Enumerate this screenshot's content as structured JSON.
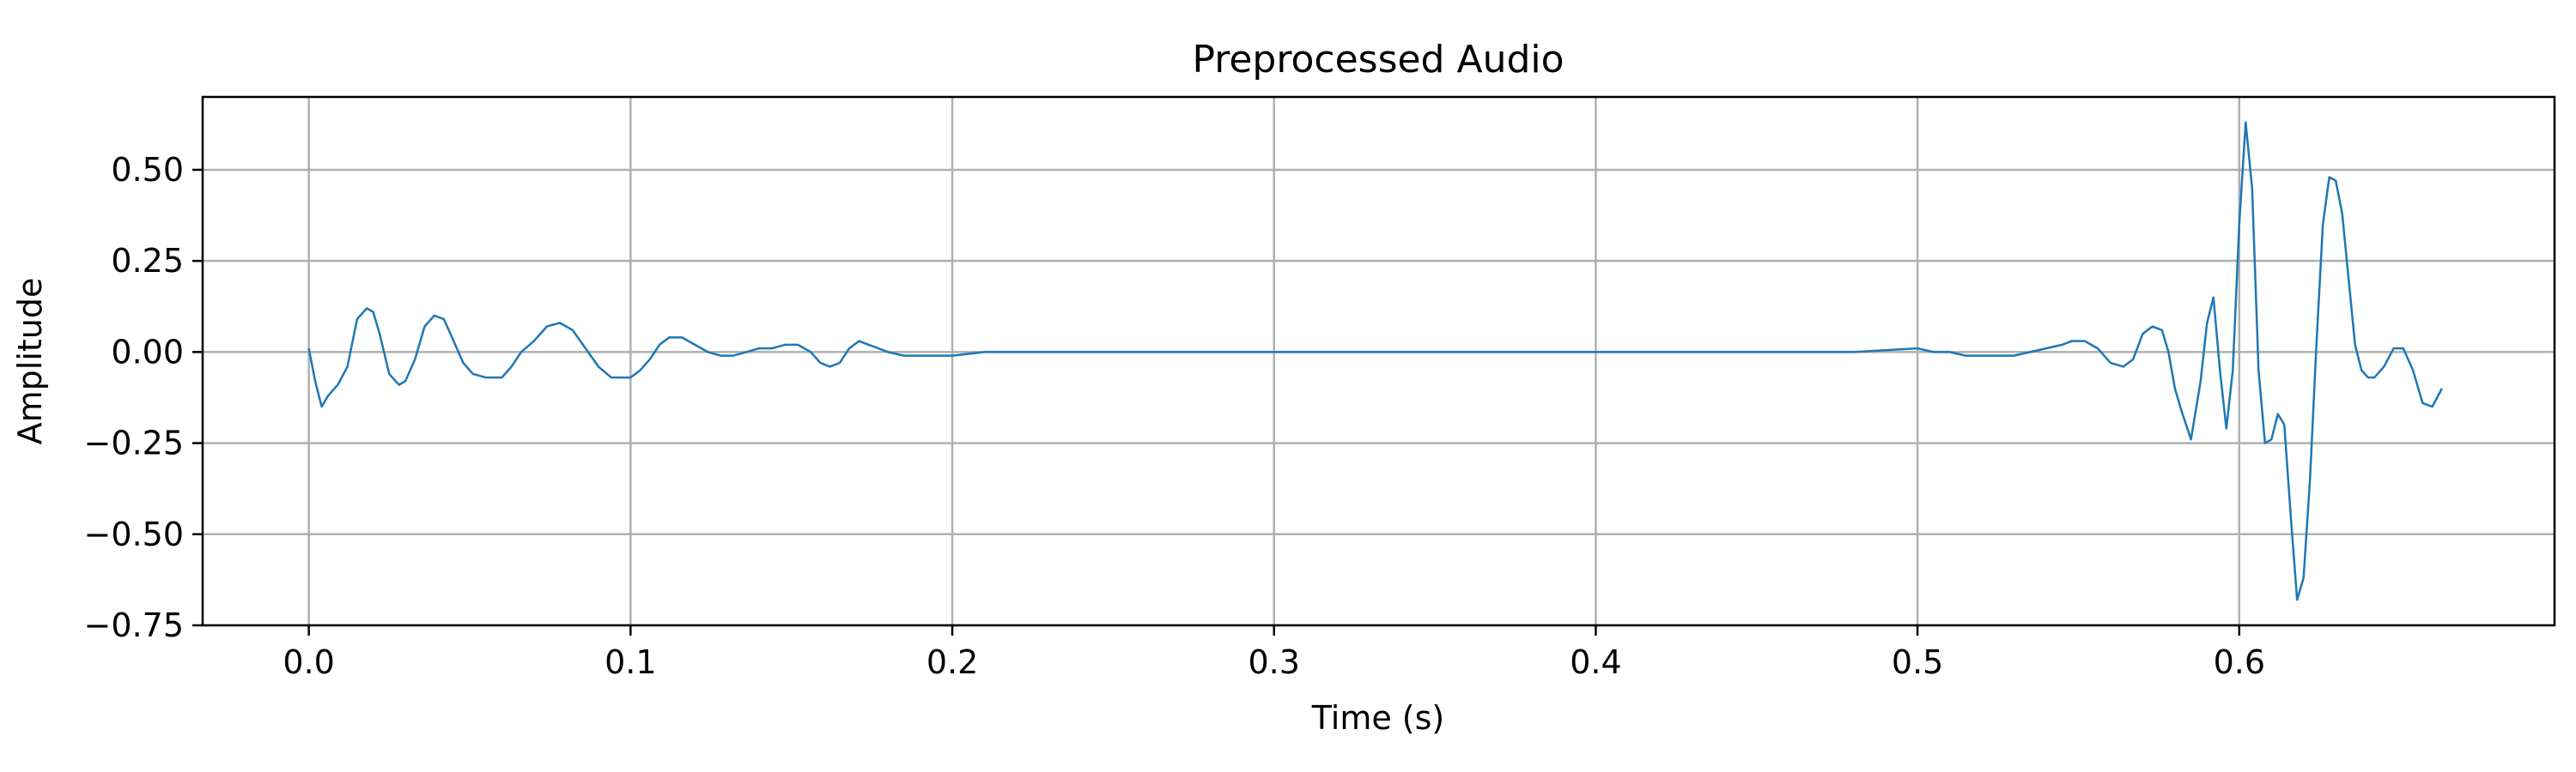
{
  "chart_data": {
    "type": "line",
    "title": "Preprocessed Audio",
    "xlabel": "Time (s)",
    "ylabel": "Amplitude",
    "xlim": [
      -0.033,
      0.698
    ],
    "ylim": [
      -0.75,
      0.7
    ],
    "x_ticks": [
      0.0,
      0.1,
      0.2,
      0.3,
      0.4,
      0.5,
      0.6
    ],
    "x_tick_labels": [
      "0.0",
      "0.1",
      "0.2",
      "0.3",
      "0.4",
      "0.5",
      "0.6"
    ],
    "y_ticks": [
      0.5,
      0.25,
      0.0,
      -0.25,
      -0.5,
      -0.75
    ],
    "y_tick_labels": [
      "0.50",
      "0.25",
      "0.00",
      "−0.25",
      "−0.50",
      "−0.75"
    ],
    "grid": true,
    "line_color": "#1f77b4",
    "grid_color": "#b0b0b0",
    "series": [
      {
        "x": [
          0.0,
          0.002,
          0.004,
          0.006,
          0.009,
          0.012,
          0.015,
          0.018,
          0.02,
          0.022,
          0.025,
          0.028,
          0.03,
          0.033,
          0.036,
          0.039,
          0.042,
          0.045,
          0.048,
          0.051,
          0.055,
          0.06,
          0.063,
          0.066,
          0.07,
          0.074,
          0.078,
          0.082,
          0.086,
          0.09,
          0.094,
          0.097,
          0.1,
          0.103,
          0.106,
          0.109,
          0.112,
          0.116,
          0.12,
          0.124,
          0.128,
          0.132,
          0.136,
          0.14,
          0.144,
          0.148,
          0.152,
          0.156,
          0.159,
          0.162,
          0.165,
          0.168,
          0.171,
          0.174,
          0.177,
          0.18,
          0.185,
          0.19,
          0.195,
          0.2,
          0.21,
          0.22,
          0.23,
          0.24,
          0.25,
          0.26,
          0.27,
          0.28,
          0.29,
          0.3,
          0.35,
          0.4,
          0.45,
          0.48,
          0.5,
          0.505,
          0.51,
          0.515,
          0.52,
          0.525,
          0.53,
          0.535,
          0.54,
          0.545,
          0.548,
          0.552,
          0.556,
          0.56,
          0.564,
          0.567,
          0.57,
          0.573,
          0.576,
          0.578,
          0.58,
          0.582,
          0.585,
          0.588,
          0.59,
          0.592,
          0.594,
          0.596,
          0.598,
          0.6,
          0.602,
          0.604,
          0.606,
          0.608,
          0.61,
          0.612,
          0.614,
          0.616,
          0.618,
          0.62,
          0.622,
          0.624,
          0.626,
          0.628,
          0.63,
          0.632,
          0.634,
          0.636,
          0.638,
          0.64,
          0.642,
          0.645,
          0.648,
          0.651,
          0.654,
          0.657,
          0.66,
          0.663
        ],
        "y": [
          0.01,
          -0.08,
          -0.15,
          -0.12,
          -0.09,
          -0.04,
          0.09,
          0.12,
          0.11,
          0.05,
          -0.06,
          -0.09,
          -0.08,
          -0.02,
          0.07,
          0.1,
          0.09,
          0.03,
          -0.03,
          -0.06,
          -0.07,
          -0.07,
          -0.04,
          0.0,
          0.03,
          0.07,
          0.08,
          0.06,
          0.01,
          -0.04,
          -0.07,
          -0.07,
          -0.07,
          -0.05,
          -0.02,
          0.02,
          0.04,
          0.04,
          0.02,
          0.0,
          -0.01,
          -0.01,
          0.0,
          0.01,
          0.01,
          0.02,
          0.02,
          0.0,
          -0.03,
          -0.04,
          -0.03,
          0.01,
          0.03,
          0.02,
          0.01,
          0.0,
          -0.01,
          -0.01,
          -0.01,
          -0.01,
          0.0,
          0.0,
          0.0,
          0.0,
          0.0,
          0.0,
          0.0,
          0.0,
          0.0,
          0.0,
          0.0,
          0.0,
          0.0,
          0.0,
          0.01,
          0.0,
          0.0,
          -0.01,
          -0.01,
          -0.01,
          -0.01,
          0.0,
          0.01,
          0.02,
          0.03,
          0.03,
          0.01,
          -0.03,
          -0.04,
          -0.02,
          0.05,
          0.07,
          0.06,
          0.0,
          -0.1,
          -0.16,
          -0.24,
          -0.08,
          0.08,
          0.15,
          -0.05,
          -0.21,
          -0.05,
          0.35,
          0.63,
          0.45,
          -0.05,
          -0.25,
          -0.24,
          -0.17,
          -0.2,
          -0.45,
          -0.68,
          -0.62,
          -0.35,
          0.02,
          0.35,
          0.48,
          0.47,
          0.38,
          0.2,
          0.02,
          -0.05,
          -0.07,
          -0.07,
          -0.04,
          0.01,
          0.01,
          -0.05,
          -0.14,
          -0.15,
          -0.1
        ]
      }
    ]
  }
}
